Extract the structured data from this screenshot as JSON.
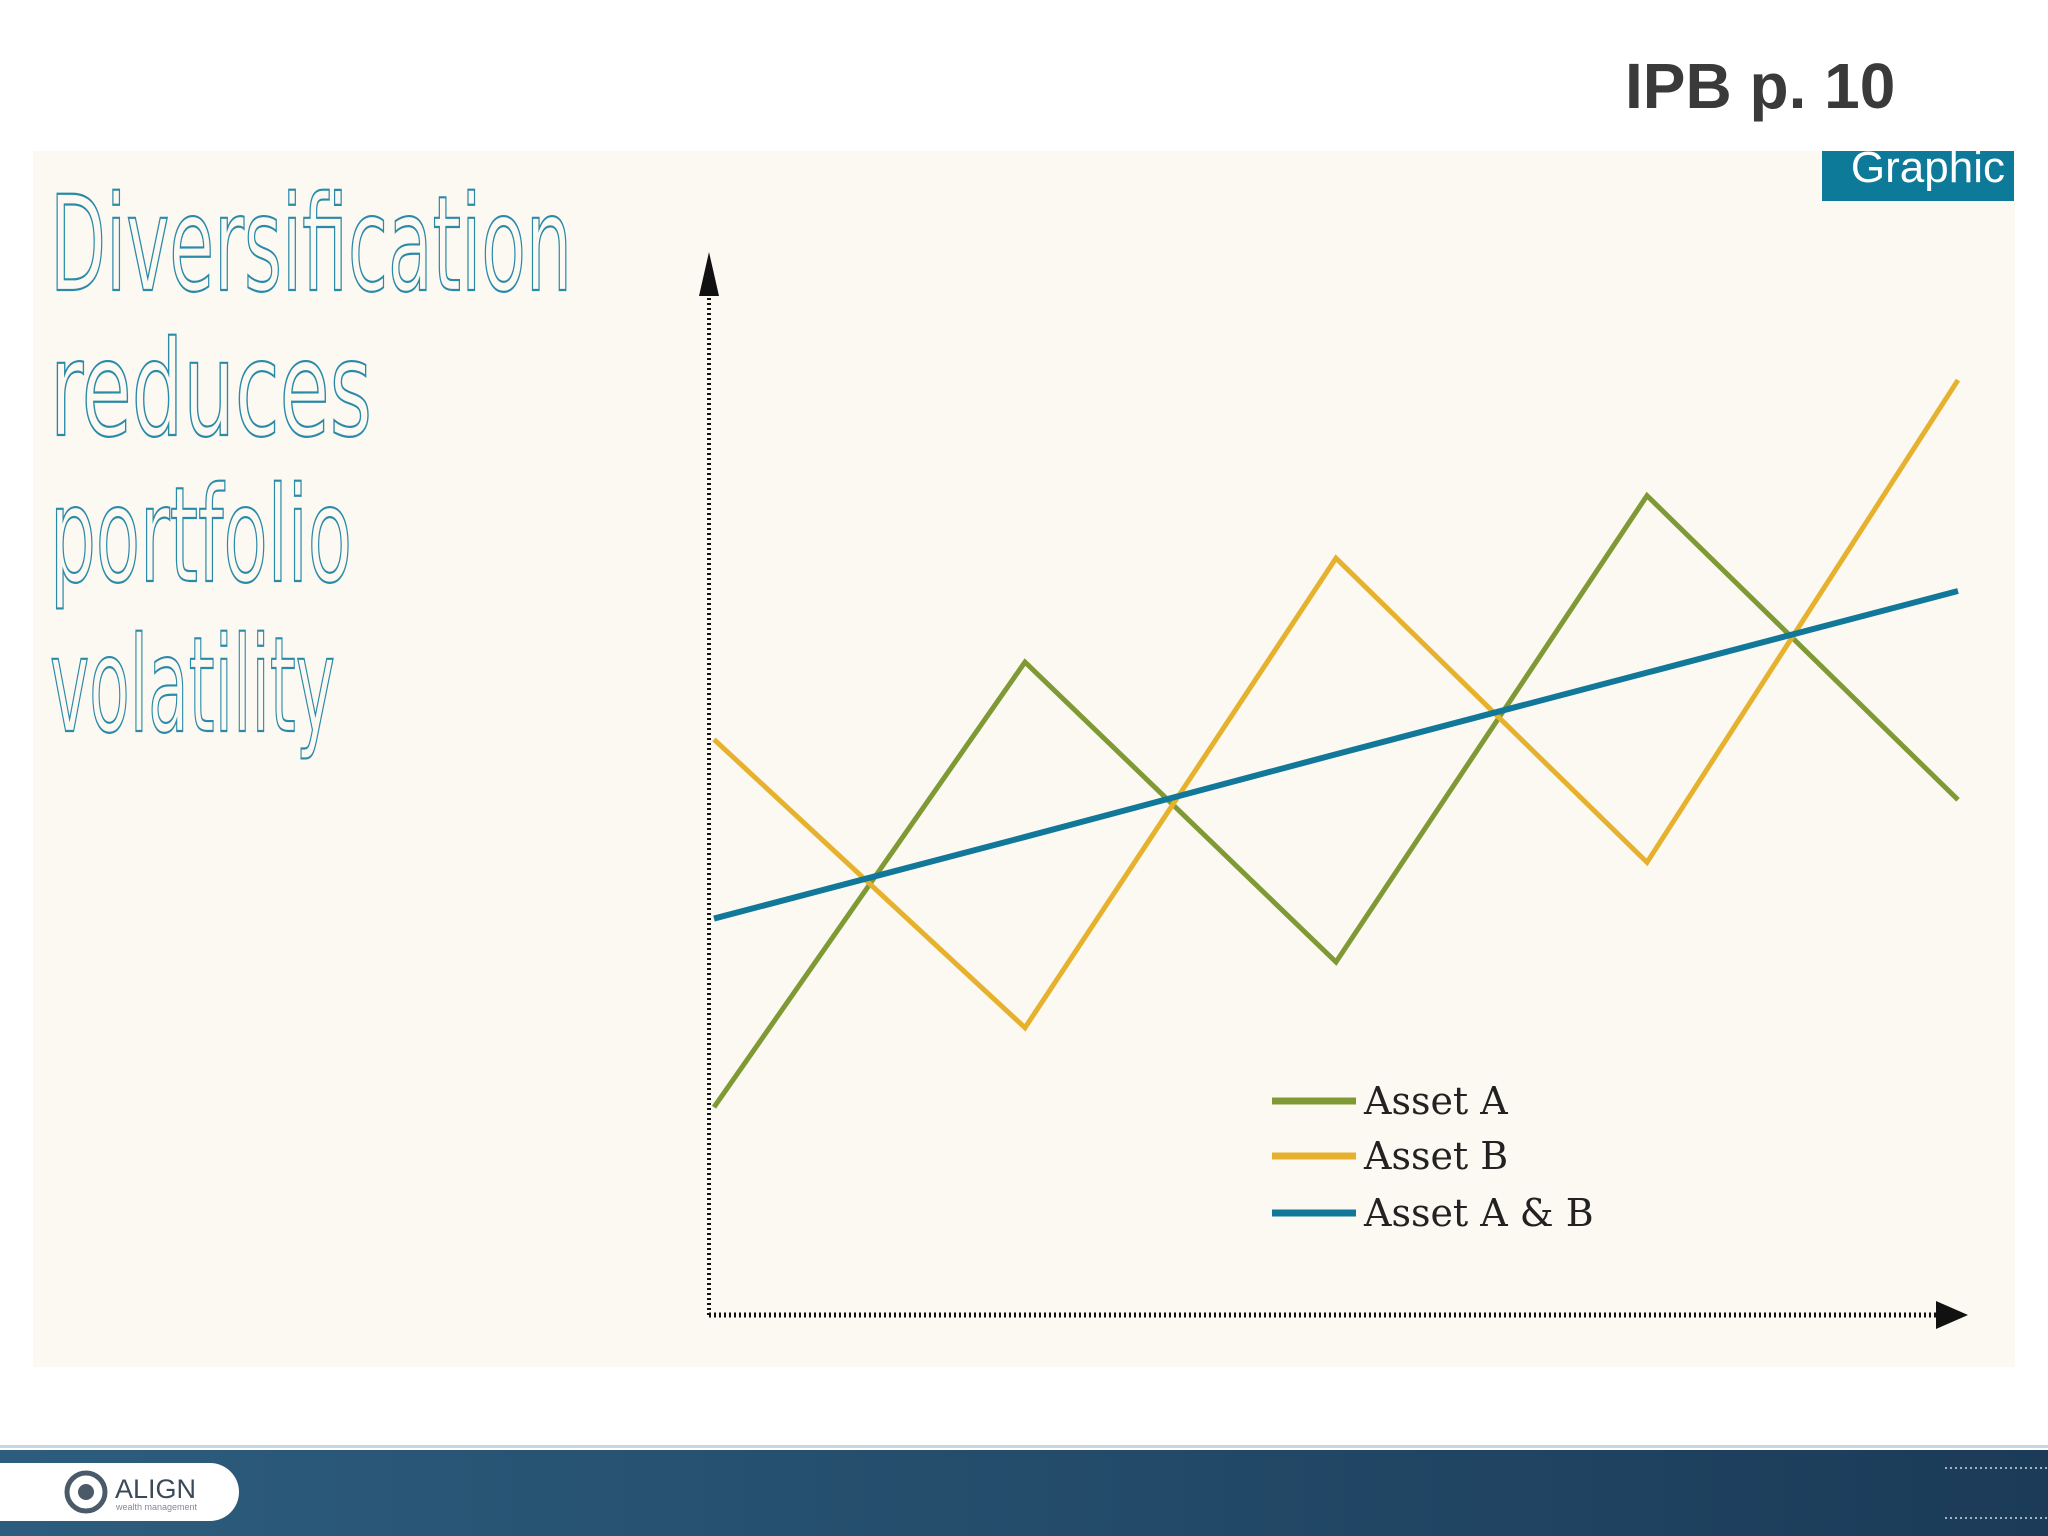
{
  "header": {
    "page_ref": "IPB p. 10",
    "tab": "Graphic"
  },
  "footer": {
    "logo": "ALIGN",
    "logo_sub": "wealth management"
  },
  "chart_data": {
    "type": "line",
    "title_lines": [
      "Diversification",
      "reduces",
      "portfolio",
      "volatility"
    ],
    "x": [
      0,
      1,
      2,
      3,
      4
    ],
    "xlim": [
      0,
      4.1
    ],
    "ylim": [
      0,
      100
    ],
    "series": [
      {
        "name": "Asset A",
        "color": "#7f9a35",
        "values": [
          19.6,
          61.6,
          33.3,
          77.3,
          48.6
        ]
      },
      {
        "name": "Asset B",
        "color": "#e6b22e",
        "values": [
          54.3,
          27.1,
          71.4,
          42.7,
          88.2
        ]
      },
      {
        "name": "Asset A & B",
        "color": "#11789a",
        "values": [
          37.4,
          45.1,
          52.9,
          60.6,
          68.3
        ]
      }
    ]
  }
}
